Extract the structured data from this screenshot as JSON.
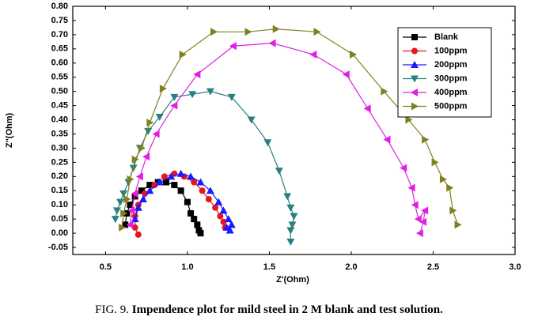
{
  "chart_data": {
    "type": "line",
    "x_label": "Z'(Ohm)",
    "y_label": "Z''(Ohm)",
    "xlim": [
      0.3,
      3.0
    ],
    "ylim": [
      -0.075,
      0.8
    ],
    "xticks": [
      0.5,
      {
        "value": 1.0,
        "label": "1.0"
      },
      1.5,
      {
        "value": 2.0,
        "label": "2.0"
      },
      2.5,
      {
        "value": 3.0,
        "label": "3.0"
      }
    ],
    "yticks": [
      -0.05,
      {
        "value": 0,
        "label": "0.00"
      },
      0.05,
      {
        "value": 0.1,
        "label": "0.10"
      },
      0.15,
      {
        "value": 0.2,
        "label": "0.20"
      },
      0.25,
      {
        "value": 0.3,
        "label": "0.30"
      },
      0.35,
      {
        "value": 0.4,
        "label": "0.40"
      },
      0.45,
      {
        "value": 0.5,
        "label": "0.50"
      },
      0.55,
      {
        "value": 0.6,
        "label": "0.60"
      },
      0.65,
      {
        "value": 0.7,
        "label": "0.70"
      },
      0.75,
      {
        "value": 0.8,
        "label": "0.80"
      }
    ],
    "legend": "upper right",
    "series": [
      {
        "name": "Blank",
        "color": "#000000",
        "marker": "square",
        "x": [
          0.62,
          0.63,
          0.65,
          0.68,
          0.72,
          0.77,
          0.82,
          0.87,
          0.92,
          0.96,
          1.0,
          1.02,
          1.04,
          1.06,
          1.07,
          1.08
        ],
        "values": [
          0.03,
          0.07,
          0.1,
          0.13,
          0.15,
          0.17,
          0.18,
          0.18,
          0.17,
          0.15,
          0.11,
          0.07,
          0.05,
          0.03,
          0.01,
          0.0
        ]
      },
      {
        "name": "100ppm",
        "color": "#e8141e",
        "marker": "circle",
        "x": [
          0.7,
          0.68,
          0.68,
          0.7,
          0.74,
          0.8,
          0.86,
          0.92,
          0.98,
          1.04,
          1.09,
          1.13,
          1.17,
          1.2,
          1.22,
          1.23
        ],
        "values": [
          -0.005,
          0.02,
          0.06,
          0.1,
          0.14,
          0.17,
          0.2,
          0.21,
          0.2,
          0.18,
          0.15,
          0.12,
          0.09,
          0.06,
          0.04,
          0.02
        ]
      },
      {
        "name": "200ppm",
        "color": "#1a1aff",
        "marker": "up",
        "x": [
          0.68,
          0.7,
          0.73,
          0.77,
          0.83,
          0.9,
          0.96,
          1.02,
          1.08,
          1.14,
          1.19,
          1.22,
          1.25,
          1.27,
          1.26,
          1.24
        ],
        "values": [
          0.05,
          0.09,
          0.12,
          0.15,
          0.18,
          0.2,
          0.21,
          0.2,
          0.18,
          0.15,
          0.11,
          0.08,
          0.05,
          0.03,
          0.01,
          0.02
        ]
      },
      {
        "name": "300ppm",
        "color": "#2a8080",
        "marker": "down",
        "x": [
          0.56,
          0.57,
          0.59,
          0.61,
          0.64,
          0.67,
          0.71,
          0.76,
          0.83,
          0.92,
          1.03,
          1.14,
          1.27,
          1.39,
          1.49,
          1.56,
          1.61,
          1.63,
          1.65,
          1.64,
          1.63,
          1.63
        ],
        "values": [
          0.05,
          0.08,
          0.11,
          0.14,
          0.18,
          0.23,
          0.3,
          0.36,
          0.41,
          0.48,
          0.49,
          0.5,
          0.48,
          0.4,
          0.32,
          0.22,
          0.13,
          0.09,
          0.06,
          0.03,
          0.01,
          -0.03
        ]
      },
      {
        "name": "400ppm",
        "color": "#e020e0",
        "marker": "left",
        "x": [
          0.65,
          0.66,
          0.68,
          0.71,
          0.75,
          0.81,
          0.92,
          1.06,
          1.28,
          1.52,
          1.77,
          1.97,
          2.1,
          2.22,
          2.32,
          2.37,
          2.39,
          2.41,
          2.45,
          2.44,
          2.42
        ],
        "values": [
          0.03,
          0.08,
          0.14,
          0.2,
          0.27,
          0.35,
          0.45,
          0.56,
          0.66,
          0.67,
          0.63,
          0.56,
          0.44,
          0.33,
          0.23,
          0.16,
          0.1,
          0.05,
          0.08,
          0.04,
          0.0
        ]
      },
      {
        "name": "500ppm",
        "color": "#808020",
        "marker": "right",
        "x": [
          0.6,
          0.61,
          0.63,
          0.65,
          0.68,
          0.72,
          0.77,
          0.85,
          0.97,
          1.16,
          1.37,
          1.54,
          1.79,
          2.01,
          2.2,
          2.35,
          2.45,
          2.51,
          2.56,
          2.6,
          2.62,
          2.65
        ],
        "values": [
          0.02,
          0.07,
          0.12,
          0.19,
          0.26,
          0.3,
          0.39,
          0.51,
          0.63,
          0.71,
          0.71,
          0.72,
          0.71,
          0.63,
          0.5,
          0.4,
          0.33,
          0.25,
          0.19,
          0.16,
          0.08,
          0.03
        ]
      }
    ]
  },
  "caption": {
    "label": "FIG. 9.",
    "text": "Impendence plot for mild steel in 2 M blank and test solution."
  }
}
